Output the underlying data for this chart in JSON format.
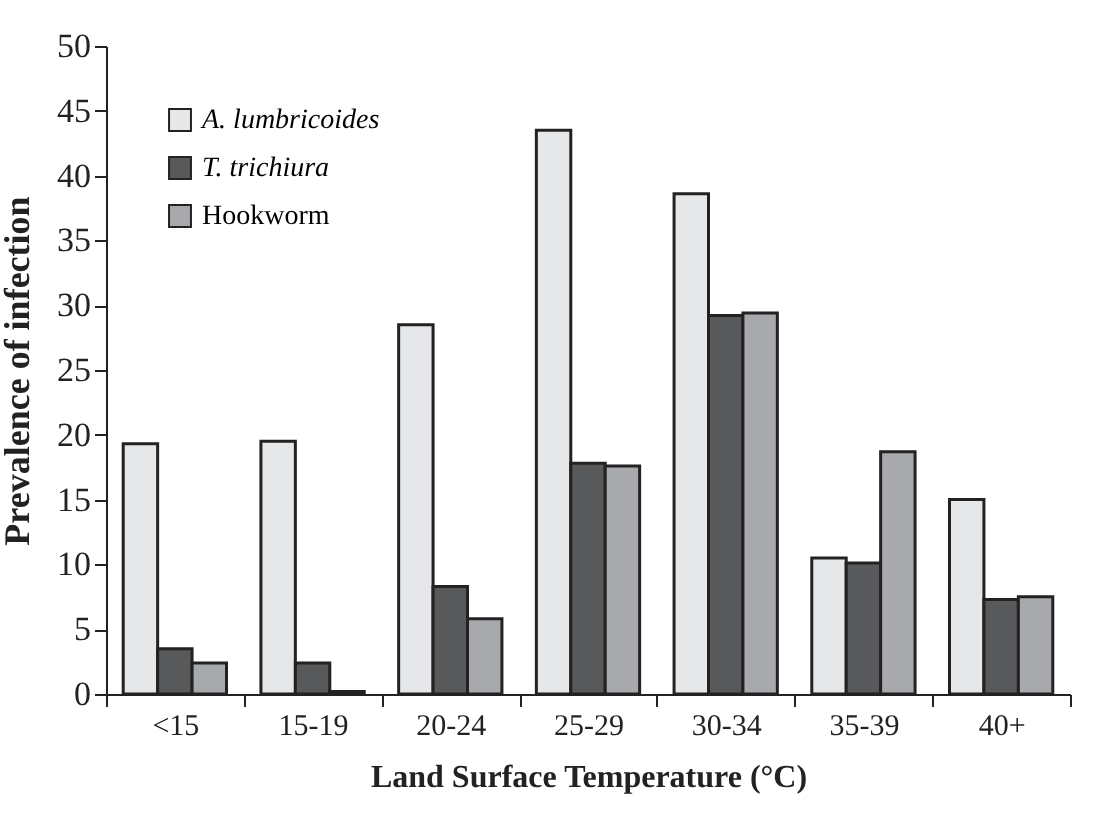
{
  "chart_data": {
    "type": "bar",
    "xlabel": "Land Surface Temperature (°C)",
    "ylabel": "Prevalence of infection",
    "categories": [
      "<15",
      "15-19",
      "20-24",
      "25-29",
      "30-34",
      "35-39",
      "40+"
    ],
    "series": [
      {
        "name": "A. lumbricoides",
        "color": "#e6e7e8",
        "values": [
          19.3,
          19.5,
          28.5,
          43.5,
          38.6,
          10.5,
          15.0
        ]
      },
      {
        "name": "T. trichiura",
        "color": "#58595b",
        "values": [
          3.5,
          2.4,
          8.3,
          17.8,
          29.2,
          10.1,
          7.3
        ]
      },
      {
        "name": "Hookworm",
        "color": "#a7a9ac",
        "values": [
          2.4,
          0.2,
          5.8,
          17.6,
          29.4,
          18.7,
          7.5
        ]
      }
    ],
    "ylim": [
      0,
      50
    ],
    "yticks": [
      0,
      5,
      10,
      15,
      20,
      25,
      30,
      35,
      40,
      45,
      50
    ],
    "grid": false,
    "legend": "top left"
  }
}
